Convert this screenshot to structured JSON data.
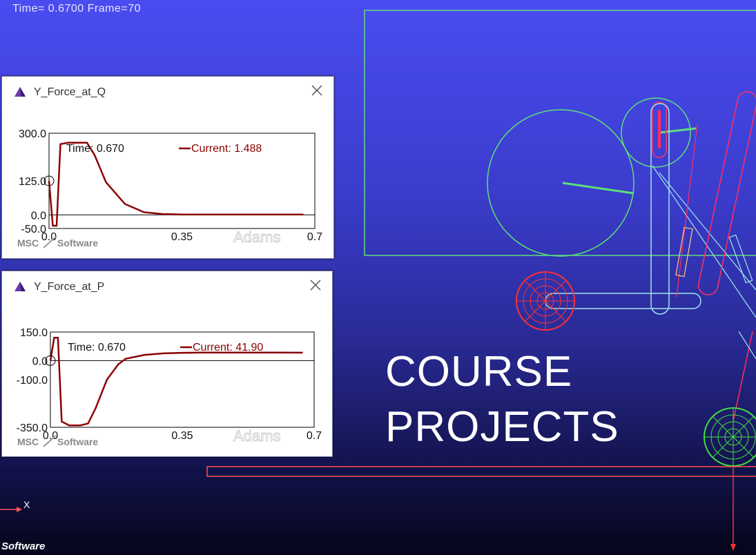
{
  "status": {
    "text": "Time= 0.6700  Frame=70"
  },
  "overlay": {
    "line1": "COURSE",
    "line2": "PROJECTS"
  },
  "bottom_logo": "Software",
  "axis_label": "X",
  "colors": {
    "curve": "#8b0000",
    "green": "#5de07a",
    "red": "#ff3030",
    "cyan": "#9fe8e8"
  },
  "plots": [
    {
      "title": "Y_Force_at_Q",
      "readout_time": "Time:  0.670",
      "readout_current": "Current:  1.488",
      "brand": "MSC",
      "brand2": "Software",
      "watermark": "Adams",
      "yticks": [
        "300.0",
        "125.0",
        "0.0",
        "-50.0"
      ],
      "xticks": [
        "0.0",
        "0.35",
        "0.7"
      ],
      "chart_data": {
        "type": "line",
        "ylim": [
          -50,
          300
        ],
        "xlim": [
          0,
          0.7
        ],
        "x": [
          0,
          0.01,
          0.02,
          0.03,
          0.05,
          0.08,
          0.1,
          0.12,
          0.15,
          0.2,
          0.25,
          0.3,
          0.35,
          0.4,
          0.5,
          0.6,
          0.67
        ],
        "y": [
          125,
          -40,
          -40,
          260,
          265,
          265,
          265,
          220,
          120,
          40,
          10,
          3,
          1.5,
          1.5,
          1.5,
          1.5,
          1.488
        ]
      }
    },
    {
      "title": "Y_Force_at_P",
      "readout_time": "Time:  0.670",
      "readout_current": "Current:  41.90",
      "brand": "MSC",
      "brand2": "Software",
      "watermark": "Adams",
      "yticks": [
        "150.0",
        "0.0",
        "-100.0",
        "-350.0"
      ],
      "xticks": [
        "0.0",
        "0.35",
        "0.7"
      ],
      "chart_data": {
        "type": "line",
        "ylim": [
          -350,
          150
        ],
        "xlim": [
          0,
          0.7
        ],
        "x": [
          0,
          0.01,
          0.02,
          0.03,
          0.05,
          0.08,
          0.1,
          0.12,
          0.15,
          0.18,
          0.2,
          0.25,
          0.3,
          0.35,
          0.4,
          0.5,
          0.6,
          0.67
        ],
        "y": [
          0,
          120,
          120,
          -320,
          -340,
          -340,
          -330,
          -250,
          -100,
          -20,
          10,
          30,
          38,
          41,
          42,
          42,
          42,
          41.9
        ]
      }
    }
  ]
}
